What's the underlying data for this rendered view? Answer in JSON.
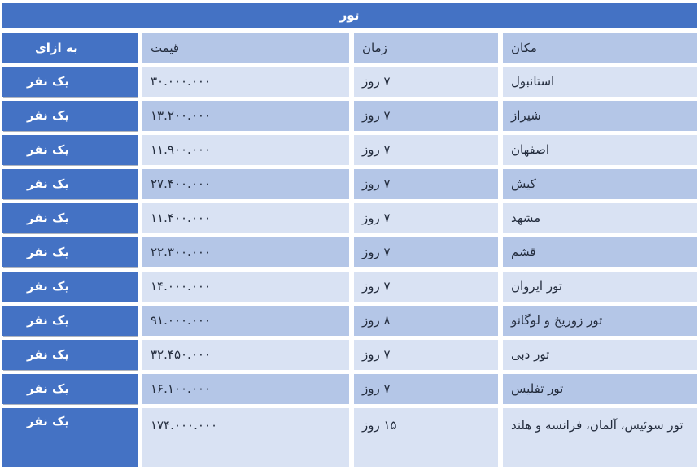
{
  "title": "تور",
  "columns": {
    "place": "مکان",
    "time": "زمان",
    "price": "قیمت",
    "per": "به ازای"
  },
  "colors": {
    "accent_blue": "#4472C4",
    "row_light": "#D9E2F3",
    "row_medium": "#B4C6E7",
    "text_dark": "#232C3D",
    "text_on_blue": "#FFFFFF",
    "gap_background": "#FFFFFF"
  },
  "rows": [
    {
      "place": "استانبول",
      "time": "۷ روز",
      "price": "۳۰.۰۰۰.۰۰۰",
      "per": "یک نفر"
    },
    {
      "place": "شیراز",
      "time": "۷ روز",
      "price": "۱۳.۲۰۰.۰۰۰",
      "per": "یک نفر"
    },
    {
      "place": "اصفهان",
      "time": "۷ روز",
      "price": "۱۱.۹۰۰.۰۰۰",
      "per": "یک نفر"
    },
    {
      "place": "کیش",
      "time": "۷ روز",
      "price": "۲۷.۴۰۰.۰۰۰",
      "per": "یک نفر"
    },
    {
      "place": "مشهد",
      "time": "۷ روز",
      "price": "۱۱.۴۰۰.۰۰۰",
      "per": "یک نفر"
    },
    {
      "place": "قشم",
      "time": "۷ روز",
      "price": "۲۲.۳۰۰.۰۰۰",
      "per": "یک نفر"
    },
    {
      "place": "تور ایروان",
      "time": "۷ روز",
      "price": "۱۴.۰۰۰.۰۰۰",
      "per": "یک نفر"
    },
    {
      "place": "تور زوریخ و لوگانو",
      "time": "۸ روز",
      "price": "۹۱.۰۰۰.۰۰۰",
      "per": "یک نفر"
    },
    {
      "place": "تور دبی",
      "time": "۷ روز",
      "price": "۳۲.۴۵۰.۰۰۰",
      "per": "یک نفر"
    },
    {
      "place": "تور تفلیس",
      "time": "۷ روز",
      "price": "۱۶.۱۰۰.۰۰۰",
      "per": "یک نفر"
    },
    {
      "place": "تور سوئیس، آلمان، فرانسه و هلند",
      "time": "۱۵ روز",
      "price": "۱۷۴.۰۰۰.۰۰۰",
      "per": "یک نفر"
    }
  ]
}
